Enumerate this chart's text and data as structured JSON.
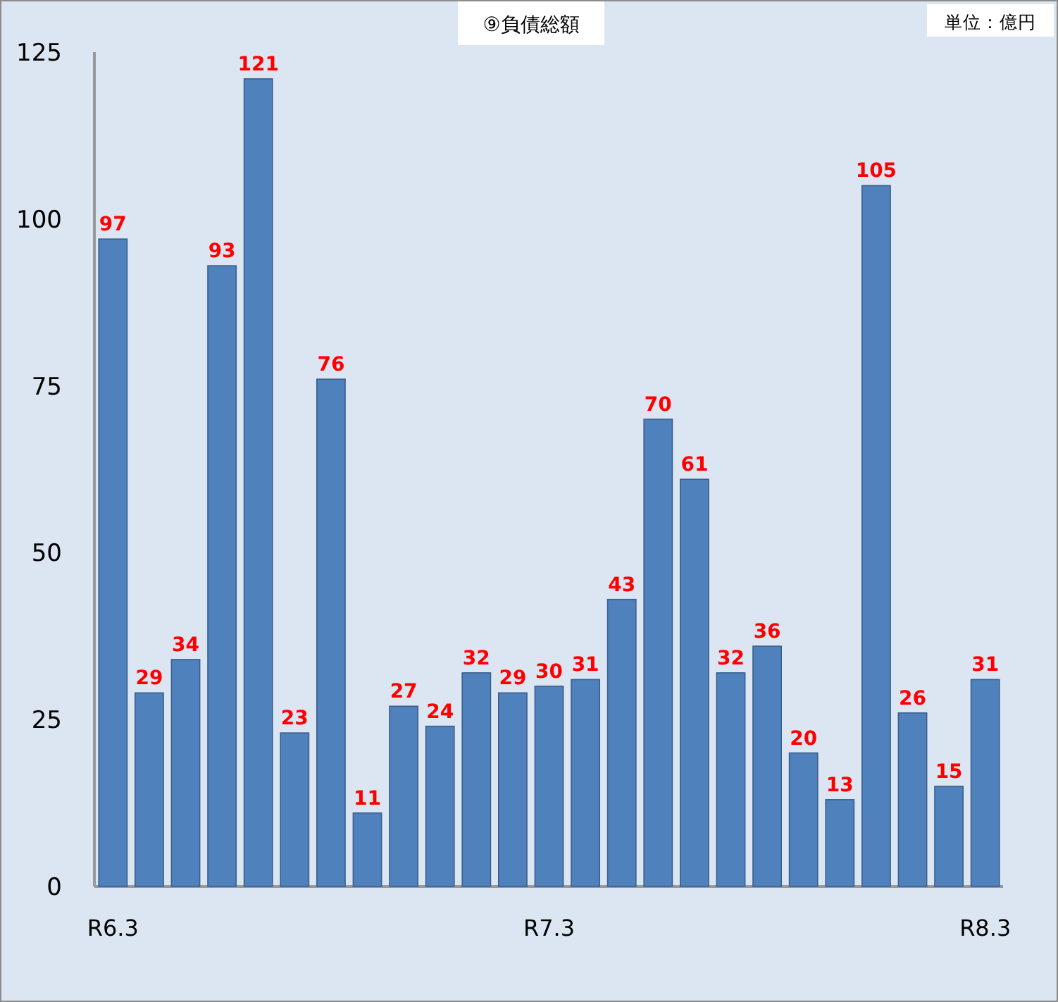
{
  "chart_data": {
    "type": "bar",
    "title": "⑨負債総額",
    "annotations": [
      "単位：億円"
    ],
    "categories": [
      "R6.3",
      null,
      null,
      null,
      null,
      null,
      null,
      null,
      null,
      null,
      null,
      null,
      "R7.3",
      null,
      null,
      null,
      null,
      null,
      null,
      null,
      null,
      null,
      null,
      null,
      "R8.3"
    ],
    "values": [
      97,
      29,
      34,
      93,
      121,
      23,
      76,
      11,
      27,
      24,
      32,
      29,
      30,
      31,
      43,
      70,
      61,
      32,
      36,
      20,
      13,
      105,
      26,
      15,
      31
    ],
    "color": "#4f81bd",
    "ylim": [
      0,
      125
    ],
    "yticks": [
      0,
      25,
      50,
      75,
      100,
      125
    ],
    "data_labels": true
  }
}
